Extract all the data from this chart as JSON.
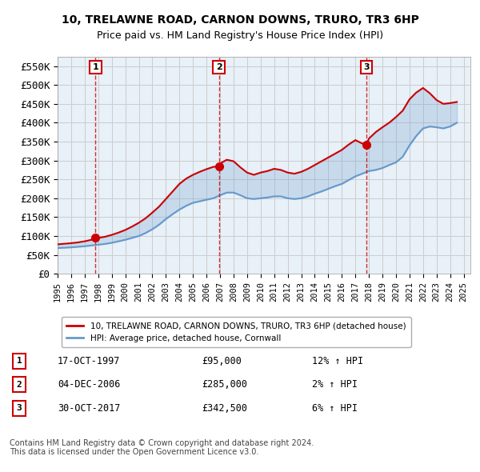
{
  "title": "10, TRELAWNE ROAD, CARNON DOWNS, TRURO, TR3 6HP",
  "subtitle": "Price paid vs. HM Land Registry's House Price Index (HPI)",
  "xlabel": "",
  "ylabel": "",
  "ylim": [
    0,
    575000
  ],
  "yticks": [
    0,
    50000,
    100000,
    150000,
    200000,
    250000,
    300000,
    350000,
    400000,
    450000,
    500000,
    550000
  ],
  "ytick_labels": [
    "£0",
    "£50K",
    "£100K",
    "£150K",
    "£200K",
    "£250K",
    "£300K",
    "£350K",
    "£400K",
    "£450K",
    "£500K",
    "£550K"
  ],
  "background_color": "#ffffff",
  "grid_color": "#cccccc",
  "transactions": [
    {
      "label": "1",
      "date": "17-OCT-1997",
      "price": 95000,
      "pct": "12%",
      "x_year": 1997.8
    },
    {
      "label": "2",
      "date": "04-DEC-2006",
      "price": 285000,
      "pct": "2%",
      "x_year": 2006.92
    },
    {
      "label": "3",
      "date": "30-OCT-2017",
      "price": 342500,
      "pct": "6%",
      "x_year": 2017.83
    }
  ],
  "legend_property_label": "10, TRELAWNE ROAD, CARNON DOWNS, TRURO, TR3 6HP (detached house)",
  "legend_hpi_label": "HPI: Average price, detached house, Cornwall",
  "footnote": "Contains HM Land Registry data © Crown copyright and database right 2024.\nThis data is licensed under the Open Government Licence v3.0.",
  "hpi_color": "#6699cc",
  "property_color": "#cc0000",
  "transaction_marker_color": "#cc0000",
  "dashed_line_color": "#cc0000",
  "xlim_start": 1995.0,
  "xlim_end": 2025.5
}
